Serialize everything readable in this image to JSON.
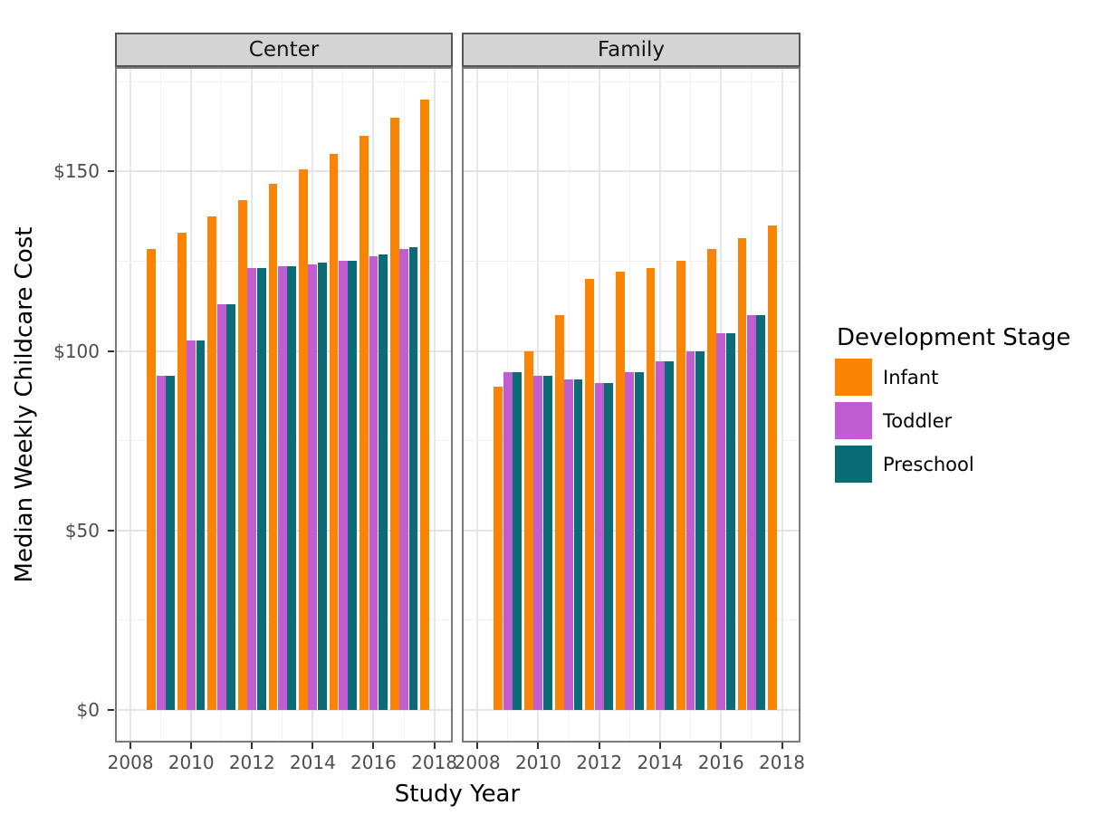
{
  "chart_data": {
    "type": "bar",
    "title": "",
    "xlabel": "Study Year",
    "ylabel": "Median Weekly Childcare Cost",
    "legend_title": "Development Stage",
    "legend_position": "right",
    "grid": true,
    "currency_prefix": "$",
    "x": [
      2009,
      2010,
      2011,
      2012,
      2013,
      2014,
      2015,
      2016,
      2017,
      2018
    ],
    "x_tick_values": [
      2008,
      2010,
      2012,
      2014,
      2016,
      2018
    ],
    "x_tick_labels": [
      "2008",
      "2010",
      "2012",
      "2014",
      "2016",
      "2018"
    ],
    "x_range": [
      2007.55,
      2018.55
    ],
    "y_tick_values": [
      0,
      50,
      100,
      150
    ],
    "y_tick_labels": [
      "$0",
      "$50",
      "$100",
      "$150"
    ],
    "y_minor_values": [
      25,
      75,
      125,
      175
    ],
    "y_range": [
      -8.6,
      178.6
    ],
    "series_names": [
      "Infant",
      "Toddler",
      "Preschool"
    ],
    "colors": [
      "#FC8405",
      "#C05DD1",
      "#0B6C76"
    ],
    "facets": [
      {
        "label": "Center",
        "series": [
          {
            "name": "Infant",
            "values": [
              128.5,
              133,
              137.5,
              142,
              146.5,
              150.5,
              155,
              160,
              165,
              170
            ]
          },
          {
            "name": "Toddler",
            "values": [
              93,
              103,
              113,
              123,
              123.5,
              124,
              125,
              126.5,
              128.5,
              null
            ]
          },
          {
            "name": "Preschool",
            "values": [
              93,
              103,
              113,
              123,
              123.5,
              124.5,
              125,
              127,
              129,
              null
            ]
          }
        ]
      },
      {
        "label": "Family",
        "series": [
          {
            "name": "Infant",
            "values": [
              90,
              100,
              110,
              120,
              122,
              123,
              125,
              128.5,
              131.5,
              135
            ]
          },
          {
            "name": "Toddler",
            "values": [
              94,
              93,
              92,
              91,
              94,
              97,
              100,
              105,
              110,
              null
            ]
          },
          {
            "name": "Preschool",
            "values": [
              94,
              93,
              92,
              91,
              94,
              97,
              100,
              105,
              110,
              null
            ]
          }
        ]
      }
    ]
  }
}
